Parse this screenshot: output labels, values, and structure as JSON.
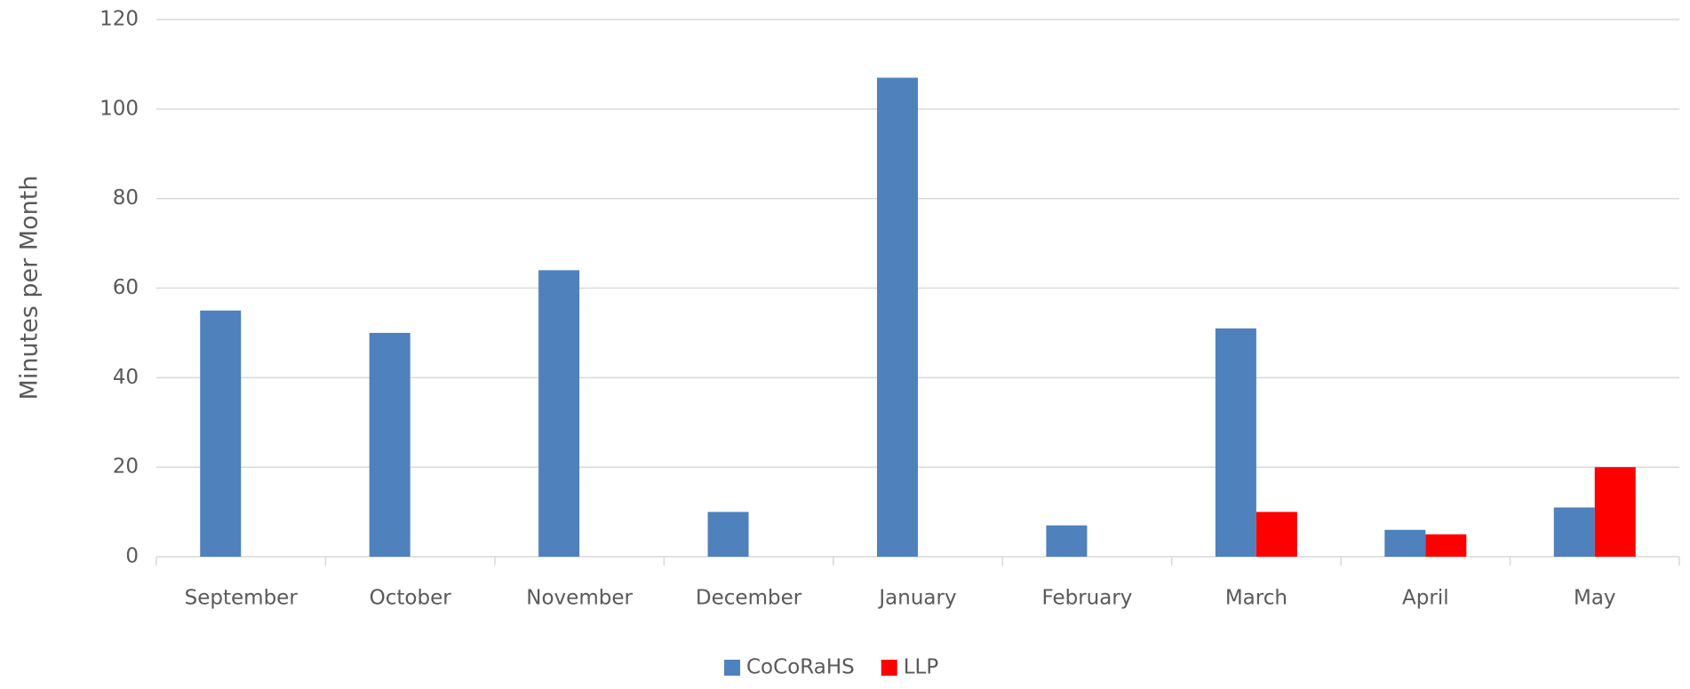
{
  "chart_data": {
    "type": "bar",
    "y_label": "Minutes per Month",
    "categories": [
      "September",
      "October",
      "November",
      "December",
      "January",
      "February",
      "March",
      "April",
      "May"
    ],
    "series": [
      {
        "name": "CoCoRaHS",
        "color": "#4f81bd",
        "values": [
          55,
          50,
          64,
          10,
          107,
          7,
          51,
          6,
          11
        ]
      },
      {
        "name": "LLP",
        "color": "#ff0000",
        "values": [
          0,
          0,
          0,
          0,
          0,
          0,
          10,
          5,
          20
        ]
      }
    ],
    "ylim": [
      0,
      120
    ],
    "yticks": [
      0,
      20,
      40,
      60,
      80,
      100,
      120
    ],
    "grid": true,
    "legend": "bottom"
  }
}
